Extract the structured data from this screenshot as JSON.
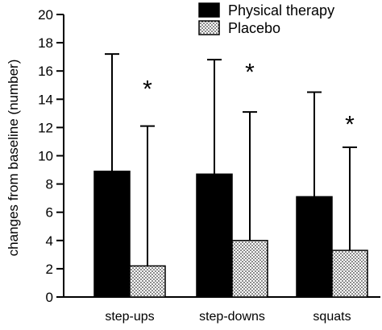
{
  "chart_data": {
    "type": "bar",
    "title": "",
    "xlabel": "",
    "ylabel": "changes from baseline (number)",
    "ylim": [
      0,
      20
    ],
    "yticks": [
      0,
      2,
      4,
      6,
      8,
      10,
      12,
      14,
      16,
      18,
      20
    ],
    "categories": [
      "step-ups",
      "step-downs",
      "squats"
    ],
    "series": [
      {
        "name": "Physical therapy",
        "color": "#000000",
        "fill": "solid",
        "values": [
          8.9,
          8.7,
          7.1
        ],
        "error_upper": [
          17.2,
          16.8,
          14.5
        ]
      },
      {
        "name": "Placebo",
        "color": "#ffffff",
        "fill": "dotted",
        "values": [
          2.2,
          4.0,
          3.3
        ],
        "error_upper": [
          12.1,
          13.1,
          10.6
        ]
      }
    ],
    "annotations": [
      {
        "text": "*",
        "category": "step-ups",
        "y": 15.3
      },
      {
        "text": "*",
        "category": "step-downs",
        "y": 16.5
      },
      {
        "text": "*",
        "category": "squats",
        "y": 12.8
      }
    ],
    "legend_position": "top-right",
    "grid": false
  }
}
